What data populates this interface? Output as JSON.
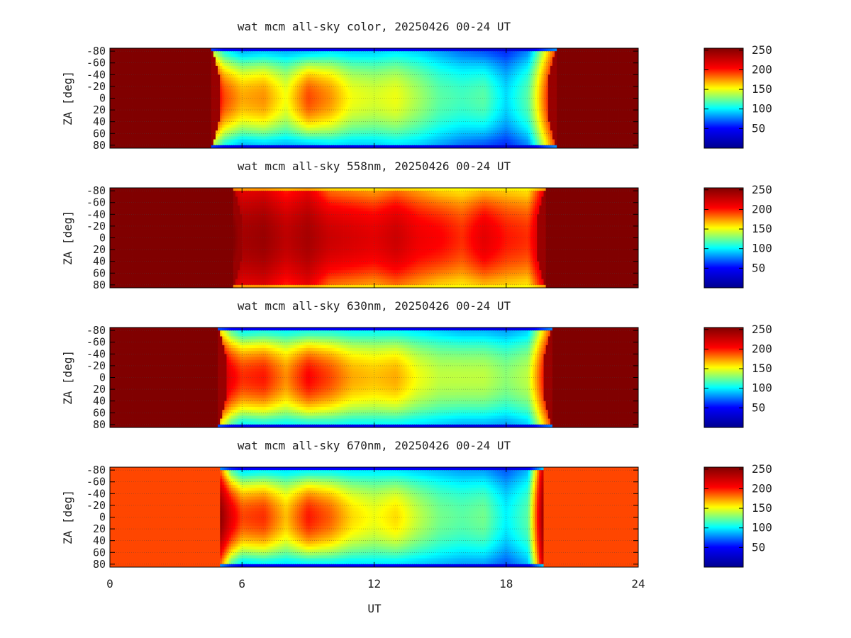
{
  "figure": {
    "xlabel": "UT",
    "x_ticks": [
      "0",
      "6",
      "12",
      "18",
      "24"
    ]
  },
  "colormap": {
    "name": "jet",
    "stops": [
      "#00008f",
      "#0000ff",
      "#00ffff",
      "#ffff00",
      "#ff0000",
      "#800000"
    ]
  },
  "chart_data": [
    {
      "type": "heatmap",
      "title": "wat mcm all-sky color, 20250426 00-24 UT",
      "xlabel": "",
      "ylabel": "ZA [deg]",
      "x_range": [
        0,
        24
      ],
      "y_range": [
        -85,
        85
      ],
      "x_ticks": [
        0,
        6,
        12,
        18,
        24
      ],
      "y_tick_labels": [
        "-80",
        "-60",
        "-40",
        "-20",
        "0",
        "20",
        "40",
        "60",
        "80"
      ],
      "color_range": [
        0,
        255
      ],
      "colorbar_ticks": [
        50,
        100,
        150,
        200,
        250
      ],
      "grid": true,
      "night_level": 255,
      "dawn_ut": 20.3,
      "dusk_ut": 4.6,
      "day_profile": {
        "ut": [
          4.6,
          5.2,
          6.0,
          7.0,
          8.0,
          9.0,
          10.0,
          11.0,
          12.0,
          13.0,
          14.0,
          15.0,
          16.0,
          17.0,
          18.0,
          19.0,
          20.3
        ],
        "center_level": [
          230,
          190,
          170,
          175,
          150,
          190,
          175,
          150,
          145,
          150,
          135,
          120,
          115,
          120,
          95,
          120,
          230
        ],
        "edge_level": [
          150,
          110,
          90,
          95,
          90,
          95,
          100,
          95,
          95,
          100,
          95,
          85,
          75,
          70,
          60,
          80,
          200
        ],
        "horizon_level": 15
      }
    },
    {
      "type": "heatmap",
      "title": "wat mcm all-sky 558nm, 20250426 00-24 UT",
      "xlabel": "",
      "ylabel": "ZA [deg]",
      "x_range": [
        0,
        24
      ],
      "y_range": [
        -85,
        85
      ],
      "x_ticks": [
        0,
        6,
        12,
        18,
        24
      ],
      "y_tick_labels": [
        "-80",
        "-60",
        "-40",
        "-20",
        "0",
        "20",
        "40",
        "60",
        "80"
      ],
      "color_range": [
        0,
        255
      ],
      "colorbar_ticks": [
        50,
        100,
        150,
        200,
        250
      ],
      "grid": true,
      "night_level": 255,
      "dawn_ut": 19.8,
      "dusk_ut": 5.6,
      "day_profile": {
        "ut": [
          5.6,
          6.0,
          7.0,
          8.0,
          9.0,
          10.0,
          11.0,
          12.0,
          13.0,
          14.0,
          15.0,
          16.0,
          17.0,
          18.0,
          19.0,
          19.8
        ],
        "center_level": [
          255,
          240,
          245,
          230,
          240,
          225,
          220,
          215,
          225,
          210,
          205,
          195,
          215,
          200,
          195,
          240
        ],
        "edge_level": [
          230,
          215,
          220,
          200,
          215,
          185,
          180,
          175,
          185,
          175,
          165,
          160,
          170,
          165,
          160,
          220
        ],
        "horizon_level": 150
      }
    },
    {
      "type": "heatmap",
      "title": "wat mcm all-sky 630nm, 20250426 00-24 UT",
      "xlabel": "",
      "ylabel": "ZA [deg]",
      "x_range": [
        0,
        24
      ],
      "y_range": [
        -85,
        85
      ],
      "x_ticks": [
        0,
        6,
        12,
        18,
        24
      ],
      "y_tick_labels": [
        "-80",
        "-60",
        "-40",
        "-20",
        "0",
        "20",
        "40",
        "60",
        "80"
      ],
      "color_range": [
        0,
        255
      ],
      "colorbar_ticks": [
        50,
        100,
        150,
        200,
        250
      ],
      "grid": true,
      "night_level": 255,
      "dawn_ut": 20.1,
      "dusk_ut": 4.9,
      "day_profile": {
        "ut": [
          4.9,
          5.5,
          6.0,
          7.0,
          8.0,
          9.0,
          10.0,
          11.0,
          12.0,
          13.0,
          14.0,
          15.0,
          16.0,
          17.0,
          18.0,
          19.0,
          20.1
        ],
        "center_level": [
          240,
          210,
          195,
          200,
          175,
          205,
          190,
          170,
          165,
          170,
          150,
          140,
          140,
          140,
          130,
          140,
          235
        ],
        "edge_level": [
          170,
          125,
          105,
          110,
          105,
          110,
          110,
          105,
          105,
          105,
          100,
          95,
          90,
          90,
          85,
          95,
          200
        ],
        "horizon_level": 10
      }
    },
    {
      "type": "heatmap",
      "title": "wat mcm all-sky 670nm, 20250426 00-24 UT",
      "xlabel": "UT",
      "ylabel": "ZA [deg]",
      "x_range": [
        0,
        24
      ],
      "y_range": [
        -85,
        85
      ],
      "x_ticks": [
        0,
        6,
        12,
        18,
        24
      ],
      "y_tick_labels": [
        "-80",
        "-60",
        "-40",
        "-20",
        "0",
        "20",
        "40",
        "60",
        "80"
      ],
      "color_range": [
        0,
        255
      ],
      "colorbar_ticks": [
        50,
        100,
        150,
        200,
        250
      ],
      "grid": true,
      "night_level": 190,
      "dawn_ut": 19.7,
      "dusk_ut": 5.0,
      "day_profile": {
        "ut": [
          5.0,
          5.5,
          6.0,
          7.0,
          8.0,
          9.0,
          10.0,
          11.0,
          12.0,
          13.0,
          14.0,
          15.0,
          16.0,
          17.0,
          18.0,
          19.0,
          19.7
        ],
        "center_level": [
          250,
          215,
          190,
          195,
          165,
          200,
          185,
          160,
          150,
          160,
          140,
          125,
          120,
          125,
          100,
          120,
          250
        ],
        "edge_level": [
          190,
          125,
          100,
          105,
          100,
          105,
          105,
          100,
          100,
          100,
          95,
          90,
          85,
          85,
          70,
          90,
          230
        ],
        "horizon_level": 20
      }
    }
  ]
}
